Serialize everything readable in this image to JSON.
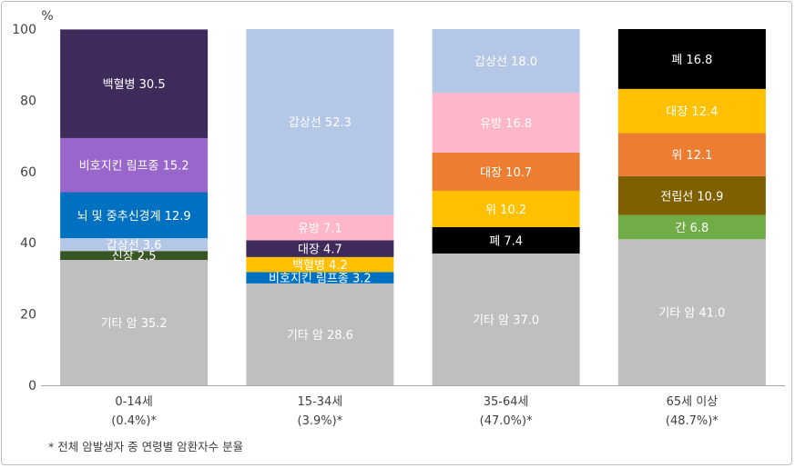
{
  "chart_data": {
    "type": "bar",
    "stacked": true,
    "y_unit": "%",
    "ylim": [
      0,
      100
    ],
    "yticks": [
      0,
      20,
      40,
      60,
      80,
      100
    ],
    "grid": false,
    "legend": "none",
    "categories": [
      {
        "label": "0-14세",
        "share": "(0.4%)*"
      },
      {
        "label": "15-34세",
        "share": "(3.9%)*"
      },
      {
        "label": "35-64세",
        "share": "(47.0%)*"
      },
      {
        "label": "65세 이상",
        "share": "(48.7%)*"
      }
    ],
    "stacks": [
      {
        "segments": [
          {
            "name": "기타 암",
            "value": 35.2,
            "label": "기타 암 35.2",
            "color": "#bfbfbf",
            "text_color": "#ffffff"
          },
          {
            "name": "신장",
            "value": 2.5,
            "label": "신장 2.5",
            "color": "#375623",
            "text_color": "#ffffff"
          },
          {
            "name": "갑상선",
            "value": 3.6,
            "label": "갑상선 3.6",
            "color": "#b4c7e7",
            "text_color": "#ffffff"
          },
          {
            "name": "뇌 및 중추신경계",
            "value": 12.9,
            "label": "뇌 및 중추신경계 12.9",
            "color": "#0070c0",
            "text_color": "#ffffff"
          },
          {
            "name": "비호지킨 림프종",
            "value": 15.2,
            "label": "비호지킨 림프종 15.2",
            "color": "#9966cc",
            "text_color": "#ffffff"
          },
          {
            "name": "백혈병",
            "value": 30.5,
            "label": "백혈병 30.5",
            "color": "#3f2a5c",
            "text_color": "#ffffff"
          }
        ]
      },
      {
        "segments": [
          {
            "name": "기타 암",
            "value": 28.6,
            "label": "기타 암 28.6",
            "color": "#bfbfbf",
            "text_color": "#ffffff"
          },
          {
            "name": "비호지킨 림프종",
            "value": 3.2,
            "label": "비호지킨 림프종 3.2",
            "color": "#0070c0",
            "text_color": "#ffffff"
          },
          {
            "name": "백혈병",
            "value": 4.2,
            "label": "백혈병 4.2",
            "color": "#ffc000",
            "text_color": "#ffffff"
          },
          {
            "name": "대장",
            "value": 4.7,
            "label": "대장 4.7",
            "color": "#3f2a5c",
            "text_color": "#ffffff"
          },
          {
            "name": "유방",
            "value": 7.1,
            "label": "유방 7.1",
            "color": "#ffb6c8",
            "text_color": "#ffffff"
          },
          {
            "name": "갑상선",
            "value": 52.3,
            "label": "갑상선 52.3",
            "color": "#b4c7e7",
            "text_color": "#ffffff"
          }
        ]
      },
      {
        "segments": [
          {
            "name": "기타 암",
            "value": 37.0,
            "label": "기타 암 37.0",
            "color": "#bfbfbf",
            "text_color": "#ffffff"
          },
          {
            "name": "폐",
            "value": 7.4,
            "label": "폐 7.4",
            "color": "#000000",
            "text_color": "#ffffff"
          },
          {
            "name": "위",
            "value": 10.2,
            "label": "위 10.2",
            "color": "#ffc000",
            "text_color": "#ffffff"
          },
          {
            "name": "대장",
            "value": 10.7,
            "label": "대장 10.7",
            "color": "#ed7d31",
            "text_color": "#ffffff"
          },
          {
            "name": "유방",
            "value": 16.8,
            "label": "유방 16.8",
            "color": "#ffb6c8",
            "text_color": "#ffffff"
          },
          {
            "name": "갑상선",
            "value": 18.0,
            "label": "갑상선 18.0",
            "color": "#b4c7e7",
            "text_color": "#ffffff"
          }
        ]
      },
      {
        "segments": [
          {
            "name": "기타 암",
            "value": 41.0,
            "label": "기타 암 41.0",
            "color": "#bfbfbf",
            "text_color": "#ffffff"
          },
          {
            "name": "간",
            "value": 6.8,
            "label": "간 6.8",
            "color": "#70ad47",
            "text_color": "#ffffff"
          },
          {
            "name": "전립선",
            "value": 10.9,
            "label": "전립선 10.9",
            "color": "#7f6000",
            "text_color": "#ffffff"
          },
          {
            "name": "위",
            "value": 12.1,
            "label": "위 12.1",
            "color": "#ed7d31",
            "text_color": "#ffffff"
          },
          {
            "name": "대장",
            "value": 12.4,
            "label": "대장 12.4",
            "color": "#ffc000",
            "text_color": "#ffffff"
          },
          {
            "name": "폐",
            "value": 16.8,
            "label": "폐 16.8",
            "color": "#000000",
            "text_color": "#ffffff"
          }
        ]
      }
    ],
    "footnote": "* 전체 암발생자 중 연령별 암환자수 분율"
  }
}
